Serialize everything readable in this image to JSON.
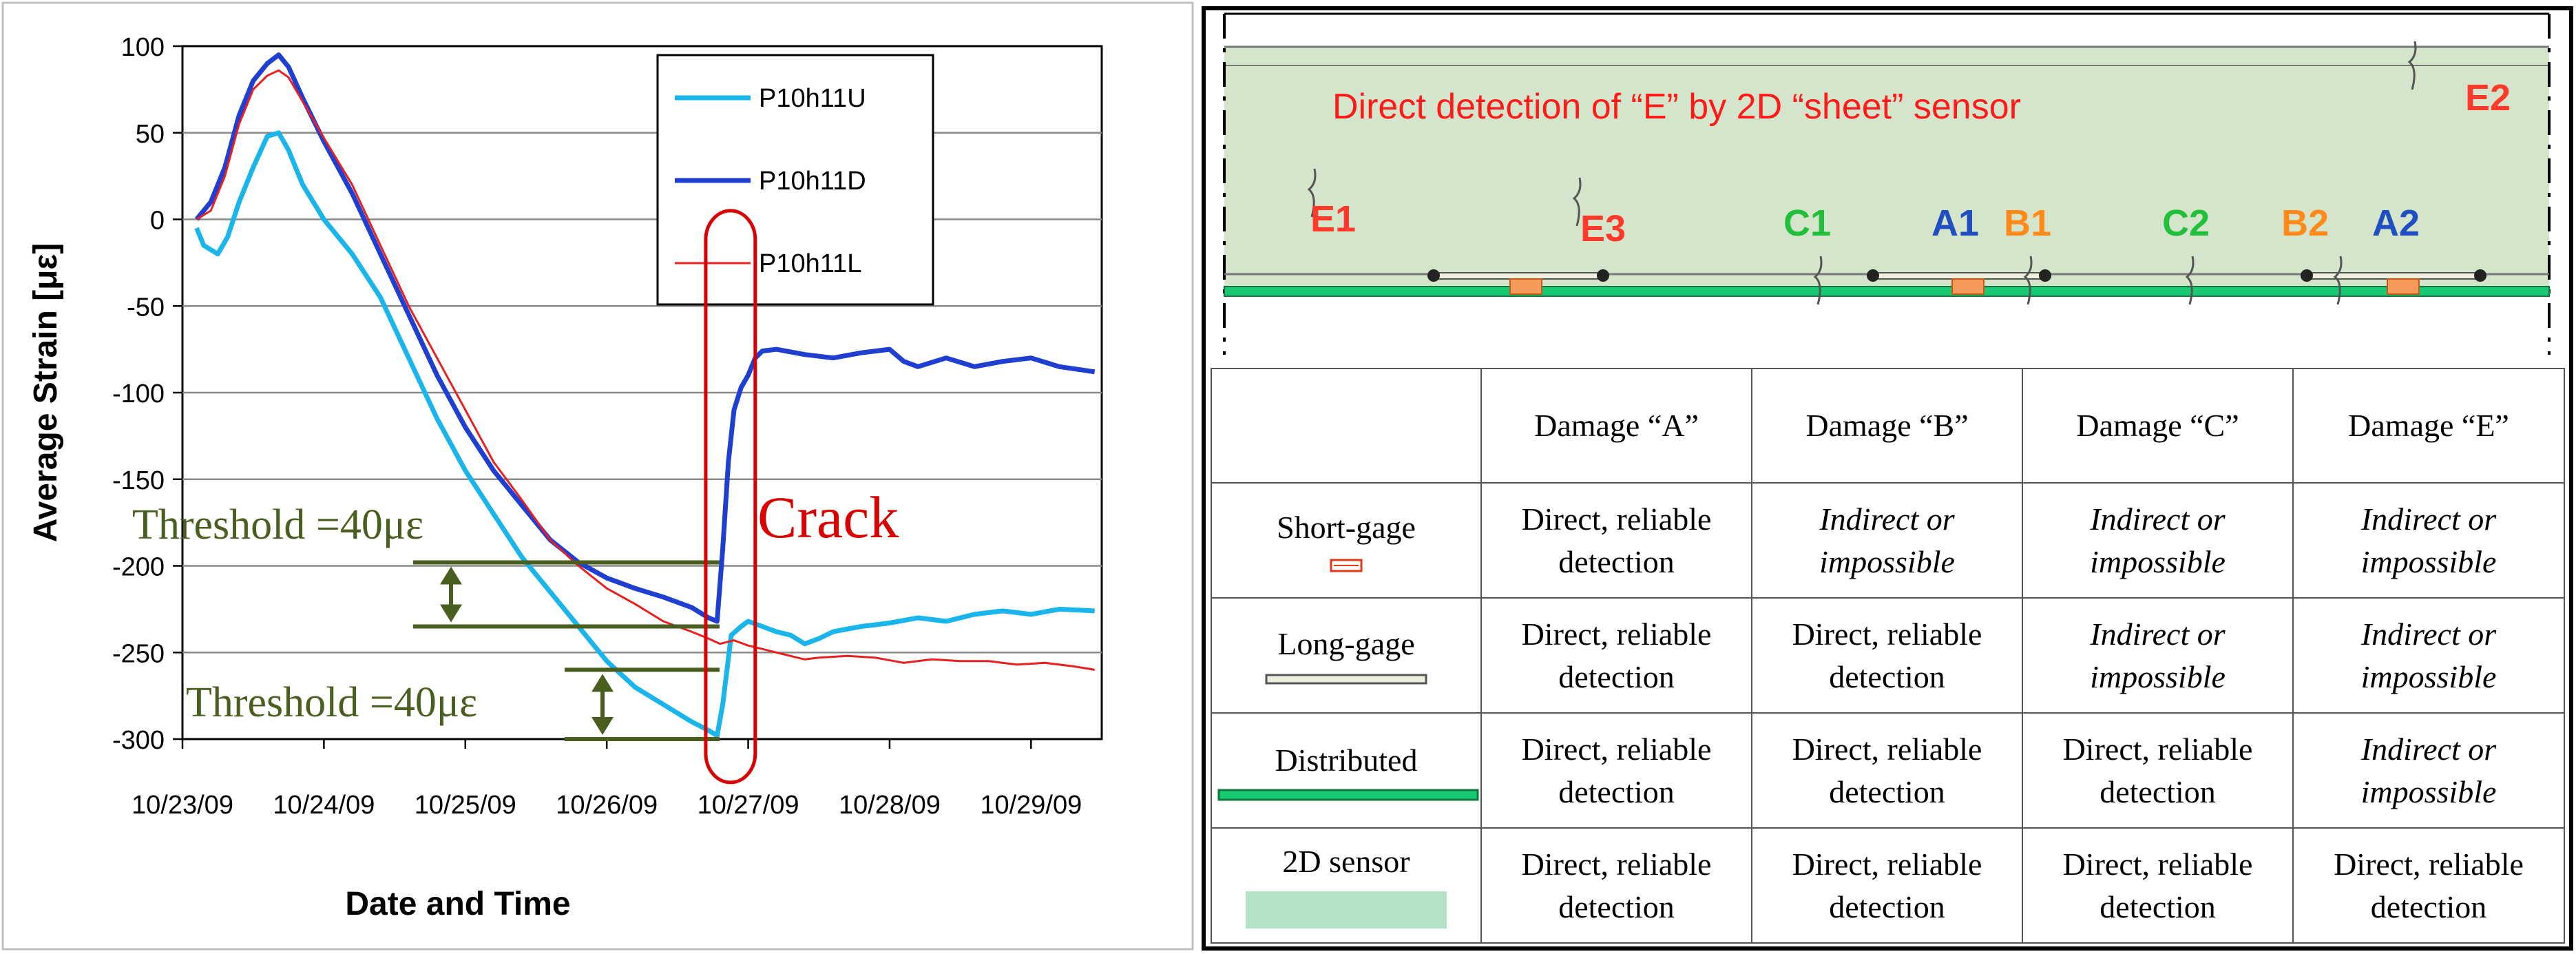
{
  "chart_data": {
    "type": "line",
    "ylabel": "Average Strain [με]",
    "xlabel": "Date and Time",
    "ylim": [
      -300,
      100
    ],
    "yticks": [
      100,
      50,
      0,
      -50,
      -100,
      -150,
      -200,
      -250,
      -300
    ],
    "xlim": [
      0,
      6.5
    ],
    "xticks": [
      "10/23/09",
      "10/24/09",
      "10/25/09",
      "10/26/09",
      "10/27/09",
      "10/28/09",
      "10/29/09"
    ],
    "grid": true,
    "legend_position": "top-right",
    "series": [
      {
        "name": "P10h11U",
        "color": "#1ab5ea",
        "points": [
          [
            0.1,
            -5
          ],
          [
            0.15,
            -15
          ],
          [
            0.25,
            -20
          ],
          [
            0.32,
            -10
          ],
          [
            0.4,
            10
          ],
          [
            0.5,
            30
          ],
          [
            0.6,
            48
          ],
          [
            0.68,
            50
          ],
          [
            0.75,
            40
          ],
          [
            0.85,
            20
          ],
          [
            1.0,
            0
          ],
          [
            1.2,
            -20
          ],
          [
            1.4,
            -45
          ],
          [
            1.6,
            -80
          ],
          [
            1.8,
            -115
          ],
          [
            2.0,
            -145
          ],
          [
            2.2,
            -170
          ],
          [
            2.4,
            -195
          ],
          [
            2.6,
            -215
          ],
          [
            2.8,
            -235
          ],
          [
            3.0,
            -255
          ],
          [
            3.2,
            -270
          ],
          [
            3.4,
            -280
          ],
          [
            3.6,
            -290
          ],
          [
            3.72,
            -295
          ],
          [
            3.78,
            -298
          ],
          [
            3.82,
            -280
          ],
          [
            3.88,
            -240
          ],
          [
            3.95,
            -235
          ],
          [
            4.0,
            -232
          ],
          [
            4.1,
            -235
          ],
          [
            4.2,
            -238
          ],
          [
            4.3,
            -240
          ],
          [
            4.4,
            -245
          ],
          [
            4.5,
            -242
          ],
          [
            4.6,
            -238
          ],
          [
            4.8,
            -235
          ],
          [
            5.0,
            -233
          ],
          [
            5.2,
            -230
          ],
          [
            5.4,
            -232
          ],
          [
            5.6,
            -228
          ],
          [
            5.8,
            -226
          ],
          [
            6.0,
            -228
          ],
          [
            6.2,
            -225
          ],
          [
            6.45,
            -226
          ]
        ]
      },
      {
        "name": "P10h11D",
        "color": "#1f3fd0",
        "points": [
          [
            0.1,
            0
          ],
          [
            0.2,
            10
          ],
          [
            0.3,
            30
          ],
          [
            0.4,
            60
          ],
          [
            0.5,
            80
          ],
          [
            0.6,
            90
          ],
          [
            0.68,
            95
          ],
          [
            0.75,
            88
          ],
          [
            0.85,
            70
          ],
          [
            1.0,
            45
          ],
          [
            1.2,
            15
          ],
          [
            1.4,
            -20
          ],
          [
            1.6,
            -55
          ],
          [
            1.8,
            -90
          ],
          [
            2.0,
            -120
          ],
          [
            2.2,
            -145
          ],
          [
            2.4,
            -165
          ],
          [
            2.6,
            -185
          ],
          [
            2.8,
            -198
          ],
          [
            3.0,
            -207
          ],
          [
            3.2,
            -213
          ],
          [
            3.4,
            -218
          ],
          [
            3.6,
            -224
          ],
          [
            3.72,
            -230
          ],
          [
            3.78,
            -232
          ],
          [
            3.82,
            -190
          ],
          [
            3.86,
            -140
          ],
          [
            3.9,
            -110
          ],
          [
            3.95,
            -97
          ],
          [
            4.0,
            -90
          ],
          [
            4.05,
            -80
          ],
          [
            4.1,
            -76
          ],
          [
            4.2,
            -75
          ],
          [
            4.4,
            -78
          ],
          [
            4.6,
            -80
          ],
          [
            4.8,
            -77
          ],
          [
            5.0,
            -75
          ],
          [
            5.1,
            -82
          ],
          [
            5.2,
            -85
          ],
          [
            5.4,
            -80
          ],
          [
            5.6,
            -85
          ],
          [
            5.8,
            -82
          ],
          [
            6.0,
            -80
          ],
          [
            6.2,
            -85
          ],
          [
            6.45,
            -88
          ]
        ]
      },
      {
        "name": "P10h11L",
        "color": "#e82020",
        "points": [
          [
            0.1,
            0
          ],
          [
            0.2,
            5
          ],
          [
            0.3,
            25
          ],
          [
            0.4,
            55
          ],
          [
            0.5,
            75
          ],
          [
            0.6,
            83
          ],
          [
            0.68,
            86
          ],
          [
            0.75,
            82
          ],
          [
            0.85,
            68
          ],
          [
            1.0,
            47
          ],
          [
            1.2,
            20
          ],
          [
            1.4,
            -15
          ],
          [
            1.6,
            -50
          ],
          [
            1.8,
            -80
          ],
          [
            2.0,
            -110
          ],
          [
            2.2,
            -140
          ],
          [
            2.4,
            -162
          ],
          [
            2.6,
            -185
          ],
          [
            2.8,
            -200
          ],
          [
            3.0,
            -213
          ],
          [
            3.2,
            -222
          ],
          [
            3.4,
            -232
          ],
          [
            3.6,
            -238
          ],
          [
            3.72,
            -242
          ],
          [
            3.8,
            -245
          ],
          [
            3.9,
            -243
          ],
          [
            4.0,
            -246
          ],
          [
            4.1,
            -248
          ],
          [
            4.2,
            -250
          ],
          [
            4.3,
            -252
          ],
          [
            4.4,
            -254
          ],
          [
            4.5,
            -253
          ],
          [
            4.7,
            -252
          ],
          [
            4.9,
            -253
          ],
          [
            5.1,
            -256
          ],
          [
            5.3,
            -254
          ],
          [
            5.5,
            -255
          ],
          [
            5.7,
            -255
          ],
          [
            5.9,
            -257
          ],
          [
            6.1,
            -256
          ],
          [
            6.3,
            -258
          ],
          [
            6.45,
            -260
          ]
        ]
      }
    ],
    "annotations": {
      "threshold_upper": {
        "text": "Threshold =40με",
        "y_top": -198,
        "y_bottom": -235
      },
      "threshold_lower": {
        "text": "Threshold =40με",
        "y_top": -260,
        "y_bottom": -300
      },
      "crack": {
        "text": "Crack",
        "x_from": 3.7,
        "x_to": 4.05,
        "y_from": -325,
        "y_to": 5
      },
      "threshold_color": "#4a5e1f",
      "crack_color": "#d80000"
    }
  },
  "diagram": {
    "title": "Direct detection of “E” by 2D “sheet” sensor",
    "title_color": "#ff1a1a",
    "sheet_color": "#d4e5cc",
    "distributed_color": "#19c873",
    "labels": [
      {
        "text": "E1",
        "color": "#ff3a2a"
      },
      {
        "text": "E3",
        "color": "#ff3a2a"
      },
      {
        "text": "C1",
        "color": "#22bf3a"
      },
      {
        "text": "A1",
        "color": "#1f4fc0"
      },
      {
        "text": "B1",
        "color": "#ff8a1a"
      },
      {
        "text": "C2",
        "color": "#22bf3a"
      },
      {
        "text": "B2",
        "color": "#ff8a1a"
      },
      {
        "text": "A2",
        "color": "#1f4fc0"
      },
      {
        "text": "E2",
        "color": "#ff3a2a"
      }
    ]
  },
  "table": {
    "headers": [
      "",
      "Damage “A”",
      "Damage “B”",
      "Damage “C”",
      "Damage “E”"
    ],
    "rows": [
      {
        "sensor": "Short-gage",
        "swatch": "short",
        "cells": [
          {
            "line1": "Direct, reliable",
            "line2": "detection",
            "italic": false
          },
          {
            "line1": "Indirect or",
            "line2": "impossible",
            "italic": true
          },
          {
            "line1": "Indirect or",
            "line2": "impossible",
            "italic": true
          },
          {
            "line1": "Indirect or",
            "line2": "impossible",
            "italic": true
          }
        ]
      },
      {
        "sensor": "Long-gage",
        "swatch": "long",
        "cells": [
          {
            "line1": "Direct, reliable",
            "line2": "detection",
            "italic": false
          },
          {
            "line1": "Direct, reliable",
            "line2": "detection",
            "italic": false
          },
          {
            "line1": "Indirect or",
            "line2": "impossible",
            "italic": true
          },
          {
            "line1": "Indirect or",
            "line2": "impossible",
            "italic": true
          }
        ]
      },
      {
        "sensor": "Distributed",
        "swatch": "distributed",
        "cells": [
          {
            "line1": "Direct, reliable",
            "line2": "detection",
            "italic": false
          },
          {
            "line1": "Direct, reliable",
            "line2": "detection",
            "italic": false
          },
          {
            "line1": "Direct, reliable",
            "line2": "detection",
            "italic": false
          },
          {
            "line1": "Indirect or",
            "line2": "impossible",
            "italic": true
          }
        ]
      },
      {
        "sensor": "2D sensor",
        "swatch": "sheet",
        "cells": [
          {
            "line1": "Direct, reliable",
            "line2": "detection",
            "italic": false
          },
          {
            "line1": "Direct, reliable",
            "line2": "detection",
            "italic": false
          },
          {
            "line1": "Direct, reliable",
            "line2": "detection",
            "italic": false
          },
          {
            "line1": "Direct, reliable",
            "line2": "detection",
            "italic": false
          }
        ]
      }
    ]
  }
}
